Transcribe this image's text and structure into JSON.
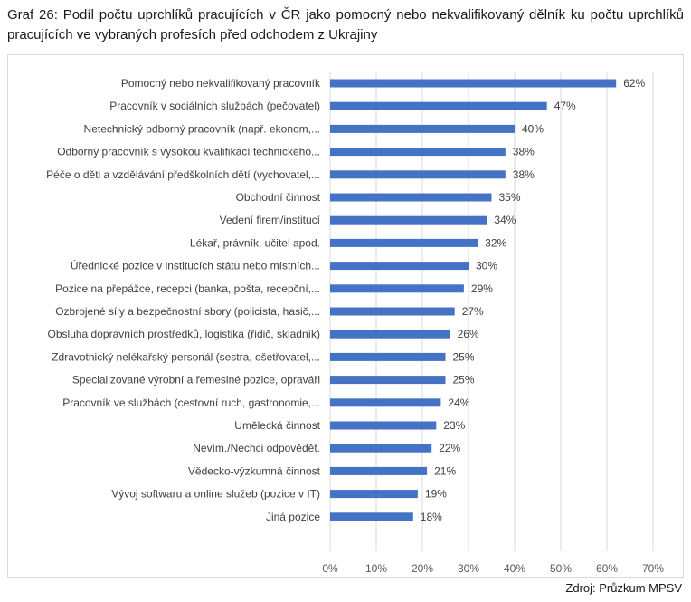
{
  "caption": "Graf 26: Podíl počtu uprchlíků pracujících v ČR jako pomocný nebo nekvalifikovaný dělník ku počtu uprchlíků pracujících ve vybraných profesích před odchodem z Ukrajiny",
  "source": "Zdroj: Průzkum MPSV",
  "chart_data": {
    "type": "bar",
    "orientation": "horizontal",
    "categories": [
      "Pomocný nebo nekvalifikovaný pracovník",
      "Pracovník v sociálních službách (pečovatel)",
      "Netechnický odborný pracovník (např. ekonom,...",
      "Odborný pracovník s vysokou kvalifikací technického...",
      "Péče o děti a vzdělávání předškolních dětí (vychovatel,...",
      "Obchodní činnost",
      "Vedení firem/institucí",
      "Lékař, právník, učitel apod.",
      "Úřednické pozice v institucích státu nebo místních...",
      "Pozice na přepážce, recepci (banka, pošta, recepční,...",
      "Ozbrojené síly a bezpečnostní sbory (policista, hasič,...",
      "Obsluha dopravních prostředků, logistika (řidič, skladník)",
      "Zdravotnický nelékařský personál (sestra, ošetřovatel,...",
      "Specializované výrobní a řemeslné pozice, opraváři",
      "Pracovník ve službách (cestovní ruch, gastronomie,...",
      "Umělecká činnost",
      "Nevím./Nechci odpovědět.",
      "Vědecko-výzkumná činnost",
      "Vývoj softwaru a online služeb (pozice v IT)",
      "Jiná pozice"
    ],
    "values": [
      62,
      47,
      40,
      38,
      38,
      35,
      34,
      32,
      30,
      29,
      27,
      26,
      25,
      25,
      24,
      23,
      22,
      21,
      19,
      18
    ],
    "value_labels": [
      "62%",
      "47%",
      "40%",
      "38%",
      "38%",
      "35%",
      "34%",
      "32%",
      "30%",
      "29%",
      "27%",
      "26%",
      "25%",
      "25%",
      "24%",
      "23%",
      "22%",
      "21%",
      "19%",
      "18%"
    ],
    "x_ticks": [
      "0%",
      "10%",
      "20%",
      "30%",
      "40%",
      "50%",
      "60%",
      "70%"
    ],
    "xlim": [
      0,
      70
    ],
    "unit": "%",
    "bar_color": "#4472c4",
    "grid_color": "#d9d9d9",
    "grid": true,
    "legend": "none"
  }
}
